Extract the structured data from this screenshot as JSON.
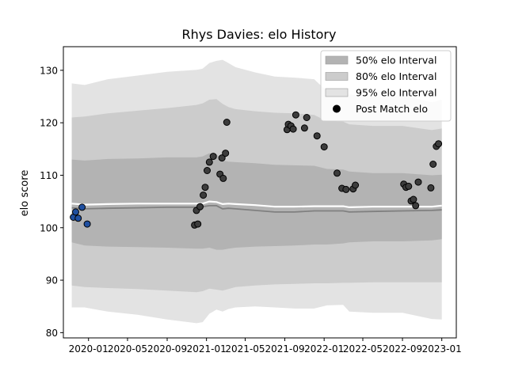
{
  "chart_data": {
    "type": "area",
    "title": "Rhys Davies: elo History",
    "xlabel": "",
    "ylabel": "elo score",
    "xlim": [
      "2019-10-15",
      "2023-02-15"
    ],
    "ylim": [
      79,
      134.5
    ],
    "x_ticks": [
      "2020-01",
      "2020-05",
      "2020-09",
      "2021-01",
      "2021-05",
      "2021-09",
      "2022-01",
      "2022-05",
      "2022-09",
      "2023-01"
    ],
    "y_ticks": [
      80,
      90,
      100,
      110,
      120,
      130
    ],
    "grid": false,
    "legend_position": "top-right",
    "legend": [
      {
        "label": "50% elo Interval",
        "kind": "band",
        "color": "#b3b3b3"
      },
      {
        "label": "80% elo Interval",
        "kind": "band",
        "color": "#cccccc"
      },
      {
        "label": "95% elo Interval",
        "kind": "band",
        "color": "#e3e3e3"
      },
      {
        "label": "Post Match elo",
        "kind": "marker",
        "color": "#000000"
      }
    ],
    "colors": {
      "band_50": "#b3b3b3",
      "band_80": "#cccccc",
      "band_95": "#e3e3e3",
      "median_line": "#808080",
      "mean_line": "#ffffff",
      "point_fill_early": "#1f4fa0",
      "point_fill": "#3c3c3c",
      "point_edge": "#000000"
    },
    "bands": {
      "x": [
        "2019-11-10",
        "2019-12-20",
        "2020-03-01",
        "2020-06-01",
        "2020-09-01",
        "2020-12-01",
        "2020-12-20",
        "2021-01-10",
        "2021-02-01",
        "2021-02-20",
        "2021-03-10",
        "2021-04-01",
        "2021-06-01",
        "2021-08-01",
        "2021-10-01",
        "2021-12-01",
        "2022-01-10",
        "2022-03-01",
        "2022-03-20",
        "2022-06-01",
        "2022-09-01",
        "2022-12-01",
        "2023-01-01"
      ],
      "p95_upper": [
        127.5,
        127.2,
        128.3,
        129.0,
        129.7,
        130.1,
        130.3,
        131.4,
        131.8,
        132.0,
        131.4,
        130.6,
        129.6,
        128.8,
        128.6,
        128.3,
        126.0,
        126.0,
        125.4,
        125.0,
        125.3,
        123.9,
        124.4
      ],
      "p80_upper": [
        121.0,
        121.2,
        121.8,
        122.3,
        122.8,
        123.4,
        123.7,
        124.4,
        124.5,
        123.6,
        123.0,
        122.6,
        122.2,
        121.9,
        121.8,
        121.5,
        120.3,
        120.2,
        119.7,
        119.4,
        119.4,
        118.6,
        118.9
      ],
      "p50_upper": [
        113.0,
        112.8,
        113.1,
        113.2,
        113.4,
        113.4,
        113.6,
        114.2,
        114.0,
        112.8,
        112.6,
        112.5,
        112.3,
        112.0,
        111.9,
        111.8,
        111.2,
        111.1,
        110.7,
        110.4,
        110.4,
        110.0,
        110.1
      ],
      "mean": [
        104.6,
        104.4,
        104.5,
        104.6,
        104.6,
        104.6,
        104.6,
        105.0,
        104.9,
        104.5,
        104.6,
        104.5,
        104.3,
        104.0,
        104.0,
        104.1,
        104.1,
        104.1,
        103.9,
        104.0,
        104.0,
        104.0,
        104.2
      ],
      "median": [
        103.8,
        103.6,
        103.7,
        103.8,
        103.9,
        103.9,
        104.0,
        104.2,
        104.2,
        103.6,
        103.7,
        103.6,
        103.3,
        103.0,
        103.0,
        103.2,
        103.2,
        103.2,
        103.0,
        103.1,
        103.2,
        103.3,
        103.4
      ],
      "p50_lower": [
        97.2,
        96.6,
        96.4,
        96.3,
        96.2,
        96.0,
        96.0,
        96.2,
        95.8,
        95.8,
        96.0,
        96.2,
        96.4,
        96.5,
        96.6,
        96.8,
        96.8,
        97.0,
        97.2,
        97.4,
        97.4,
        97.6,
        97.8
      ],
      "p80_lower": [
        89.0,
        88.7,
        88.5,
        88.3,
        88.0,
        87.7,
        87.9,
        88.4,
        88.2,
        88.0,
        88.3,
        88.7,
        89.0,
        89.2,
        89.3,
        89.4,
        89.4,
        89.5,
        89.5,
        89.6,
        89.6,
        89.6,
        89.6
      ],
      "p95_lower": [
        84.8,
        84.8,
        84.0,
        83.4,
        82.5,
        81.8,
        82.0,
        83.6,
        84.4,
        84.0,
        84.5,
        84.8,
        85.0,
        84.8,
        84.6,
        84.6,
        85.2,
        85.3,
        84.0,
        83.8,
        83.8,
        82.6,
        82.5
      ]
    },
    "points": [
      {
        "x": "2019-11-15",
        "y": 102.0,
        "early": true
      },
      {
        "x": "2019-11-22",
        "y": 103.0,
        "early": true
      },
      {
        "x": "2019-11-30",
        "y": 101.8,
        "early": true
      },
      {
        "x": "2019-12-12",
        "y": 103.9,
        "early": true
      },
      {
        "x": "2019-12-28",
        "y": 100.7,
        "early": true
      },
      {
        "x": "2020-11-25",
        "y": 100.5
      },
      {
        "x": "2020-12-01",
        "y": 103.3
      },
      {
        "x": "2020-12-05",
        "y": 100.7
      },
      {
        "x": "2020-12-12",
        "y": 104.0
      },
      {
        "x": "2020-12-22",
        "y": 106.2
      },
      {
        "x": "2020-12-28",
        "y": 107.7
      },
      {
        "x": "2021-01-03",
        "y": 110.9
      },
      {
        "x": "2021-01-10",
        "y": 112.5
      },
      {
        "x": "2021-01-22",
        "y": 113.6
      },
      {
        "x": "2021-02-12",
        "y": 110.2
      },
      {
        "x": "2021-02-18",
        "y": 113.3
      },
      {
        "x": "2021-02-22",
        "y": 109.4
      },
      {
        "x": "2021-03-01",
        "y": 114.2
      },
      {
        "x": "2021-03-05",
        "y": 120.1
      },
      {
        "x": "2021-09-08",
        "y": 118.7
      },
      {
        "x": "2021-09-12",
        "y": 119.7
      },
      {
        "x": "2021-09-20",
        "y": 119.4
      },
      {
        "x": "2021-09-27",
        "y": 118.8
      },
      {
        "x": "2021-10-05",
        "y": 121.5
      },
      {
        "x": "2021-11-01",
        "y": 119.0
      },
      {
        "x": "2021-11-08",
        "y": 121.0
      },
      {
        "x": "2021-12-10",
        "y": 117.5
      },
      {
        "x": "2022-01-01",
        "y": 115.4
      },
      {
        "x": "2022-02-10",
        "y": 110.4
      },
      {
        "x": "2022-02-25",
        "y": 107.5
      },
      {
        "x": "2022-03-10",
        "y": 107.3
      },
      {
        "x": "2022-04-01",
        "y": 107.4
      },
      {
        "x": "2022-04-08",
        "y": 108.1
      },
      {
        "x": "2022-09-05",
        "y": 108.3
      },
      {
        "x": "2022-09-12",
        "y": 107.7
      },
      {
        "x": "2022-09-20",
        "y": 107.9
      },
      {
        "x": "2022-09-28",
        "y": 105.1
      },
      {
        "x": "2022-10-05",
        "y": 105.4
      },
      {
        "x": "2022-10-12",
        "y": 104.2
      },
      {
        "x": "2022-10-20",
        "y": 108.7
      },
      {
        "x": "2022-11-28",
        "y": 107.6
      },
      {
        "x": "2022-12-05",
        "y": 112.1
      },
      {
        "x": "2022-12-15",
        "y": 115.5
      },
      {
        "x": "2022-12-22",
        "y": 116.0
      }
    ]
  }
}
